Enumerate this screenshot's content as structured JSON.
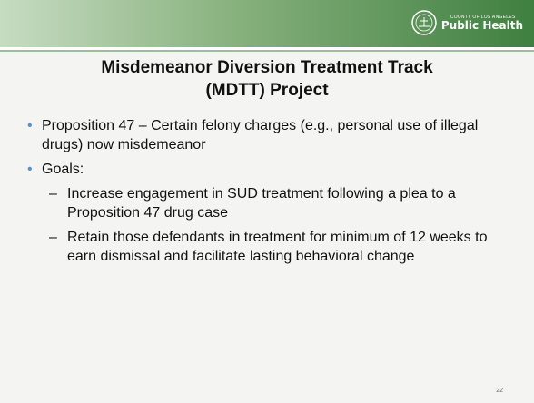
{
  "header": {
    "org_small": "County of Los Angeles",
    "org": "Public Health"
  },
  "title": [
    "Misdemeanor Diversion Treatment Track",
    "(MDTT) Project"
  ],
  "bullets": [
    {
      "text": "Proposition 47 – Certain felony charges (e.g., personal use of illegal drugs) now misdemeanor",
      "subitems": []
    },
    {
      "text": "Goals:",
      "subitems": [
        "Increase engagement in SUD treatment following a plea to a Proposition 47 drug case",
        "Retain those defendants in treatment for minimum of 12 weeks to earn dismissal and facilitate lasting behavioral change"
      ]
    }
  ],
  "page_number": "22"
}
